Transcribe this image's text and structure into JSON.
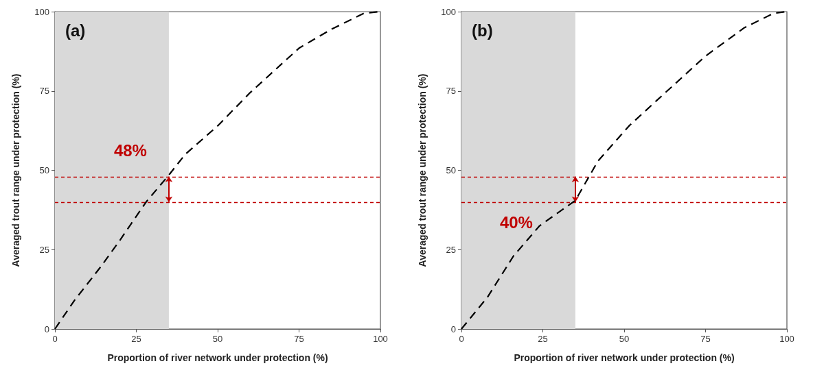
{
  "chart_data": [
    {
      "type": "line",
      "xlabel": "Proportion of river network under protection (%)",
      "ylabel": "Averaged trout range under protection (%)",
      "series": [
        {
          "color": "#000000",
          "x": [
            0,
            6,
            14,
            20,
            28,
            35,
            40,
            50,
            60,
            75,
            85,
            95,
            100
          ],
          "values": [
            0,
            9,
            19.5,
            28,
            40,
            48.5,
            55,
            64,
            74.5,
            88.5,
            94.5,
            99.5,
            100
          ]
        }
      ],
      "xlim": [
        0,
        100
      ],
      "xticks": [
        0,
        25,
        50,
        75,
        100
      ],
      "ylim": [
        0,
        100
      ],
      "yticks": [
        0,
        25,
        50,
        75,
        100
      ],
      "line_style": "dashed",
      "marker": "none",
      "bands": [
        {
          "axis": "x",
          "from": 0,
          "to": 35,
          "color": "#d9d9d9"
        }
      ],
      "ref_lines": [
        {
          "axis": "y",
          "value": 48,
          "color": "#c00000",
          "line_style": "dashed"
        },
        {
          "axis": "y",
          "value": 40,
          "color": "#c00000",
          "line_style": "dashed"
        }
      ],
      "annotations": [
        "(a)",
        {
          "text": "48%",
          "x": 35,
          "y": 48
        }
      ]
    },
    {
      "type": "line",
      "xlabel": "Proportion of river network under protection (%)",
      "ylabel": "Averaged trout range under protection (%)",
      "series": [
        {
          "color": "#000000",
          "x": [
            0,
            8,
            16,
            24,
            35,
            42,
            51.5,
            60,
            75,
            87,
            96,
            100
          ],
          "values": [
            0,
            10,
            23,
            32.5,
            40.5,
            53,
            64,
            72,
            86,
            95,
            99.5,
            100
          ]
        }
      ],
      "xlim": [
        0,
        100
      ],
      "xticks": [
        0,
        25,
        50,
        75,
        100
      ],
      "ylim": [
        0,
        100
      ],
      "yticks": [
        0,
        25,
        50,
        75,
        100
      ],
      "line_style": "dashed",
      "marker": "none",
      "bands": [
        {
          "axis": "x",
          "from": 0,
          "to": 35,
          "color": "#d9d9d9"
        }
      ],
      "ref_lines": [
        {
          "axis": "y",
          "value": 48,
          "color": "#c00000",
          "line_style": "dashed"
        },
        {
          "axis": "y",
          "value": 40,
          "color": "#c00000",
          "line_style": "dashed"
        }
      ],
      "annotations": [
        "(b)",
        {
          "text": "40%",
          "x": 35,
          "y": 40
        }
      ]
    }
  ]
}
